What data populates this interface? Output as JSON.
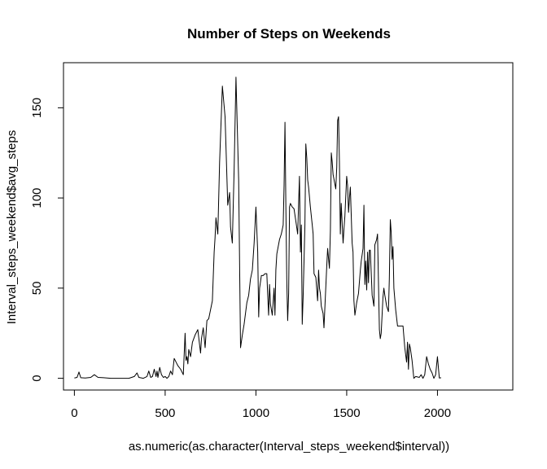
{
  "chart_data": {
    "type": "line",
    "title": "Number of Steps on Weekends",
    "xlabel": "as.numeric(as.character(Interval_steps_weekend$interval))",
    "ylabel": "Interval_steps_weekend$avg_steps",
    "xlim": [
      -60,
      2415
    ],
    "ylim": [
      -6.5,
      175
    ],
    "x_ticks": [
      0,
      500,
      1000,
      1500,
      2000
    ],
    "y_ticks": [
      0,
      50,
      100,
      150
    ],
    "grid": false,
    "line_color": "#000000",
    "series": [
      {
        "points": [
          [
            0,
            0.2
          ],
          [
            15,
            0.5
          ],
          [
            25,
            3.5
          ],
          [
            35,
            0.3
          ],
          [
            60,
            0.2
          ],
          [
            90,
            0.5
          ],
          [
            110,
            2
          ],
          [
            130,
            0.5
          ],
          [
            160,
            0.3
          ],
          [
            200,
            0
          ],
          [
            250,
            0
          ],
          [
            300,
            0
          ],
          [
            330,
            1
          ],
          [
            345,
            3
          ],
          [
            355,
            0.5
          ],
          [
            380,
            0
          ],
          [
            400,
            1
          ],
          [
            410,
            4
          ],
          [
            420,
            0.5
          ],
          [
            430,
            1
          ],
          [
            440,
            5
          ],
          [
            450,
            1
          ],
          [
            455,
            4
          ],
          [
            460,
            0.5
          ],
          [
            470,
            6
          ],
          [
            480,
            2
          ],
          [
            490,
            0.5
          ],
          [
            500,
            1
          ],
          [
            510,
            0
          ],
          [
            520,
            1
          ],
          [
            530,
            4
          ],
          [
            540,
            2
          ],
          [
            550,
            11
          ],
          [
            560,
            9
          ],
          [
            570,
            7
          ],
          [
            585,
            5
          ],
          [
            600,
            2
          ],
          [
            610,
            25
          ],
          [
            615,
            10
          ],
          [
            620,
            12
          ],
          [
            625,
            8
          ],
          [
            630,
            16
          ],
          [
            640,
            12
          ],
          [
            650,
            20
          ],
          [
            665,
            24
          ],
          [
            680,
            27
          ],
          [
            695,
            14
          ],
          [
            700,
            22
          ],
          [
            710,
            28
          ],
          [
            720,
            17
          ],
          [
            730,
            32
          ],
          [
            740,
            33
          ],
          [
            760,
            43
          ],
          [
            770,
            70
          ],
          [
            775,
            78
          ],
          [
            780,
            89
          ],
          [
            790,
            80
          ],
          [
            800,
            120
          ],
          [
            815,
            162
          ],
          [
            830,
            145
          ],
          [
            845,
            96
          ],
          [
            855,
            103
          ],
          [
            860,
            84
          ],
          [
            870,
            75
          ],
          [
            880,
            115
          ],
          [
            890,
            167
          ],
          [
            905,
            110
          ],
          [
            915,
            17
          ],
          [
            925,
            24
          ],
          [
            935,
            30
          ],
          [
            950,
            42
          ],
          [
            960,
            46
          ],
          [
            970,
            55
          ],
          [
            980,
            60
          ],
          [
            990,
            75
          ],
          [
            1000,
            95
          ],
          [
            1010,
            70
          ],
          [
            1015,
            34
          ],
          [
            1020,
            50
          ],
          [
            1030,
            57
          ],
          [
            1040,
            57
          ],
          [
            1050,
            58
          ],
          [
            1060,
            58
          ],
          [
            1065,
            46
          ],
          [
            1070,
            35
          ],
          [
            1075,
            52
          ],
          [
            1080,
            41
          ],
          [
            1090,
            35
          ],
          [
            1100,
            50
          ],
          [
            1105,
            35
          ],
          [
            1110,
            60
          ],
          [
            1115,
            69
          ],
          [
            1130,
            77
          ],
          [
            1140,
            80
          ],
          [
            1150,
            85
          ],
          [
            1155,
            107
          ],
          [
            1160,
            142
          ],
          [
            1165,
            95
          ],
          [
            1170,
            55
          ],
          [
            1175,
            32
          ],
          [
            1180,
            47
          ],
          [
            1185,
            95
          ],
          [
            1190,
            97
          ],
          [
            1200,
            95
          ],
          [
            1210,
            94
          ],
          [
            1220,
            87
          ],
          [
            1230,
            80
          ],
          [
            1240,
            112
          ],
          [
            1245,
            70
          ],
          [
            1250,
            85
          ],
          [
            1255,
            30
          ],
          [
            1260,
            45
          ],
          [
            1270,
            85
          ],
          [
            1275,
            130
          ],
          [
            1280,
            122
          ],
          [
            1285,
            110
          ],
          [
            1290,
            106
          ],
          [
            1300,
            95
          ],
          [
            1310,
            85
          ],
          [
            1315,
            80
          ],
          [
            1320,
            58
          ],
          [
            1330,
            56
          ],
          [
            1340,
            43
          ],
          [
            1345,
            60
          ],
          [
            1350,
            50
          ],
          [
            1355,
            47
          ],
          [
            1360,
            40
          ],
          [
            1370,
            36
          ],
          [
            1375,
            28
          ],
          [
            1380,
            40
          ],
          [
            1390,
            62
          ],
          [
            1395,
            72
          ],
          [
            1405,
            61
          ],
          [
            1410,
            82
          ],
          [
            1415,
            125
          ],
          [
            1420,
            120
          ],
          [
            1425,
            113
          ],
          [
            1440,
            105
          ],
          [
            1445,
            117
          ],
          [
            1450,
            143
          ],
          [
            1455,
            145
          ],
          [
            1460,
            120
          ],
          [
            1465,
            80
          ],
          [
            1470,
            97
          ],
          [
            1475,
            85
          ],
          [
            1480,
            75
          ],
          [
            1485,
            83
          ],
          [
            1490,
            90
          ],
          [
            1500,
            112
          ],
          [
            1505,
            107
          ],
          [
            1510,
            92
          ],
          [
            1515,
            100
          ],
          [
            1520,
            106
          ],
          [
            1530,
            75
          ],
          [
            1535,
            70
          ],
          [
            1540,
            43
          ],
          [
            1545,
            35
          ],
          [
            1555,
            42
          ],
          [
            1565,
            47
          ],
          [
            1575,
            60
          ],
          [
            1580,
            65
          ],
          [
            1590,
            72
          ],
          [
            1595,
            96
          ],
          [
            1600,
            52
          ],
          [
            1605,
            65
          ],
          [
            1610,
            49
          ],
          [
            1615,
            70
          ],
          [
            1620,
            53
          ],
          [
            1625,
            71
          ],
          [
            1630,
            71
          ],
          [
            1640,
            46
          ],
          [
            1650,
            40
          ],
          [
            1655,
            74
          ],
          [
            1665,
            77
          ],
          [
            1670,
            80
          ],
          [
            1680,
            27
          ],
          [
            1685,
            22
          ],
          [
            1690,
            25
          ],
          [
            1700,
            45
          ],
          [
            1705,
            50
          ],
          [
            1710,
            46
          ],
          [
            1720,
            40
          ],
          [
            1730,
            37
          ],
          [
            1735,
            55
          ],
          [
            1740,
            88
          ],
          [
            1745,
            81
          ],
          [
            1750,
            66
          ],
          [
            1755,
            73
          ],
          [
            1760,
            50
          ],
          [
            1770,
            38
          ],
          [
            1780,
            29
          ],
          [
            1800,
            29
          ],
          [
            1810,
            29
          ],
          [
            1820,
            17
          ],
          [
            1830,
            9
          ],
          [
            1835,
            20
          ],
          [
            1840,
            5
          ],
          [
            1845,
            19
          ],
          [
            1850,
            17
          ],
          [
            1860,
            10
          ],
          [
            1870,
            0
          ],
          [
            1880,
            1
          ],
          [
            1900,
            0.5
          ],
          [
            1910,
            2
          ],
          [
            1920,
            0
          ],
          [
            1930,
            2
          ],
          [
            1940,
            12
          ],
          [
            1950,
            8
          ],
          [
            1960,
            5
          ],
          [
            1970,
            3
          ],
          [
            1980,
            0
          ],
          [
            1990,
            2
          ],
          [
            2000,
            12
          ],
          [
            2010,
            0.2
          ],
          [
            2020,
            0.3
          ]
        ]
      }
    ]
  }
}
